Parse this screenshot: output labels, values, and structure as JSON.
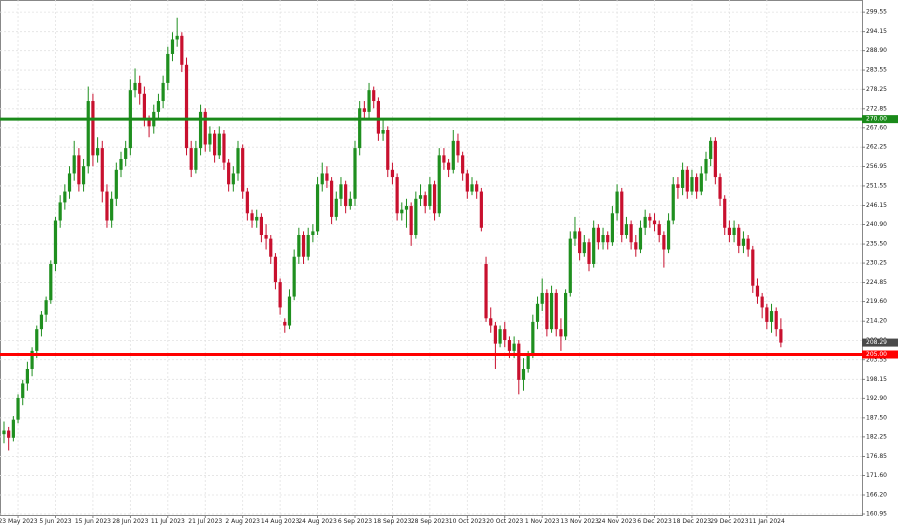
{
  "chart_data": {
    "type": "candlestick",
    "up_color": "#1f8f1f",
    "down_color": "#c8102e",
    "grid": true,
    "ylim": [
      160.4,
      302.9
    ],
    "yticks": [
      299.55,
      294.15,
      {
        "value": 288.9,
        "label": "288.90"
      },
      283.55,
      278.25,
      272.85,
      {
        "value": 267.6,
        "label": "267.60"
      },
      262.25,
      256.95,
      251.55,
      246.15,
      {
        "value": 240.9,
        "label": "240.90"
      },
      {
        "value": 235.5,
        "label": "235.50"
      },
      230.25,
      224.85,
      {
        "value": 219.6,
        "label": "219.60"
      },
      {
        "value": 214.2,
        "label": "214.20"
      },
      {
        "value": 208.9,
        "label": "208.90"
      },
      203.55,
      198.15,
      {
        "value": 192.9,
        "label": "192.90"
      },
      {
        "value": 187.5,
        "label": "187.50"
      },
      182.25,
      176.85,
      {
        "value": 171.6,
        "label": "171.60"
      },
      {
        "value": 166.2,
        "label": "166.20"
      },
      160.95
    ],
    "levels": [
      {
        "value": 270,
        "label": "270.00",
        "color": "#1a8a1a"
      },
      {
        "value": 205,
        "label": "205.00",
        "color": "#ff0000"
      }
    ],
    "last_price": {
      "value": 208.29,
      "label": "208.29"
    },
    "categories": [
      null,
      null,
      null,
      "23 May 2023",
      null,
      null,
      null,
      null,
      null,
      null,
      null,
      "5 Jun 2023",
      null,
      null,
      null,
      null,
      null,
      null,
      null,
      "15 Jun 2023",
      null,
      null,
      null,
      null,
      null,
      null,
      null,
      "28 Jun 2023",
      null,
      null,
      null,
      null,
      null,
      null,
      null,
      "11 Jul 2023",
      null,
      null,
      null,
      null,
      null,
      null,
      null,
      "21 Jul 2023",
      null,
      null,
      null,
      null,
      null,
      null,
      null,
      "2 Aug 2023",
      null,
      null,
      null,
      null,
      null,
      null,
      null,
      "14 Aug 2023",
      null,
      null,
      null,
      null,
      null,
      null,
      null,
      "24 Aug 2023",
      null,
      null,
      null,
      null,
      null,
      null,
      null,
      "6 Sep 2023",
      null,
      null,
      null,
      null,
      null,
      null,
      null,
      "18 Sep 2023",
      null,
      null,
      null,
      null,
      null,
      null,
      null,
      "28 Sep 2023",
      null,
      null,
      null,
      null,
      null,
      null,
      null,
      "10 Oct 2023",
      null,
      null,
      null,
      null,
      null,
      null,
      null,
      "20 Oct 2023",
      null,
      null,
      null,
      null,
      null,
      null,
      null,
      "1 Nov 2023",
      null,
      null,
      null,
      null,
      null,
      null,
      null,
      "13 Nov 2023",
      null,
      null,
      null,
      null,
      null,
      null,
      null,
      "24 Nov 2023",
      null,
      null,
      null,
      null,
      null,
      null,
      null,
      "6 Dec 2023",
      null,
      null,
      null,
      null,
      null,
      null,
      null,
      "18 Dec 2023",
      null,
      null,
      null,
      null,
      null,
      null,
      null,
      "29 Dec 2023",
      null,
      null,
      null,
      null,
      null,
      null,
      null,
      "11 Jan 2024",
      null,
      null,
      null
    ],
    "candles": [
      [
        183,
        186.5,
        180.5,
        184
      ],
      [
        184,
        185,
        178.5,
        182
      ],
      [
        182,
        188,
        181,
        187
      ],
      [
        187,
        194,
        186,
        193
      ],
      [
        193,
        198,
        191,
        197
      ],
      [
        197,
        203,
        195,
        201
      ],
      [
        201,
        207,
        199,
        206
      ],
      [
        206,
        213,
        204,
        212
      ],
      [
        212,
        217,
        210,
        216
      ],
      [
        216,
        221,
        214,
        220
      ],
      [
        220,
        231,
        219,
        230
      ],
      [
        230,
        243,
        228,
        242
      ],
      [
        242,
        249,
        240,
        247
      ],
      [
        247,
        252,
        245,
        250
      ],
      [
        250,
        257,
        248,
        255
      ],
      [
        255,
        264,
        253,
        260
      ],
      [
        260,
        262,
        250,
        252
      ],
      [
        252,
        259,
        250,
        257
      ],
      [
        257,
        279,
        255,
        275
      ],
      [
        275,
        277,
        257,
        260
      ],
      [
        260,
        265,
        258,
        262
      ],
      [
        262,
        264,
        247,
        250
      ],
      [
        250,
        252,
        240,
        242
      ],
      [
        242,
        250,
        240,
        248
      ],
      [
        248,
        258,
        246,
        256
      ],
      [
        256,
        261,
        254,
        259
      ],
      [
        259,
        264,
        257,
        262
      ],
      [
        262,
        281,
        260,
        278
      ],
      [
        278,
        284,
        276,
        280
      ],
      [
        280,
        282,
        274,
        277
      ],
      [
        277,
        279,
        268,
        270
      ],
      [
        270,
        271,
        265,
        268
      ],
      [
        268,
        274,
        266,
        272
      ],
      [
        272,
        277,
        270,
        275
      ],
      [
        275,
        282,
        273,
        280
      ],
      [
        280,
        290,
        278,
        288
      ],
      [
        288,
        294,
        286,
        292
      ],
      [
        292,
        298,
        290,
        293
      ],
      [
        293,
        294,
        283,
        285
      ],
      [
        285,
        287,
        260,
        262
      ],
      [
        262,
        264,
        254,
        256
      ],
      [
        256,
        264,
        255,
        262
      ],
      [
        262,
        274,
        260,
        272
      ],
      [
        272,
        273,
        261,
        263
      ],
      [
        263,
        268,
        261,
        266
      ],
      [
        266,
        267,
        258,
        260
      ],
      [
        260,
        268,
        259,
        266
      ],
      [
        266,
        267,
        256,
        258
      ],
      [
        258,
        259,
        250,
        252
      ],
      [
        252,
        257,
        250,
        255
      ],
      [
        255,
        264,
        253,
        262
      ],
      [
        262,
        263,
        248,
        250
      ],
      [
        250,
        251,
        242,
        244
      ],
      [
        244,
        245,
        240,
        242
      ],
      [
        242,
        245,
        240,
        243
      ],
      [
        243,
        244,
        236,
        238
      ],
      [
        238,
        241,
        234,
        237
      ],
      [
        237,
        238,
        230,
        232
      ],
      [
        232,
        233,
        223,
        225
      ],
      [
        225,
        226,
        216,
        218
      ],
      [
        214,
        215,
        211,
        213
      ],
      [
        213,
        223,
        212,
        221
      ],
      [
        221,
        234,
        220,
        232
      ],
      [
        232,
        240,
        230,
        238
      ],
      [
        238,
        239,
        230,
        232
      ],
      [
        232,
        240,
        231,
        238
      ],
      [
        238,
        241,
        236,
        239
      ],
      [
        239,
        254,
        238,
        252
      ],
      [
        252,
        258,
        250,
        255
      ],
      [
        255,
        257,
        251,
        253
      ],
      [
        253,
        254,
        241,
        243
      ],
      [
        243,
        250,
        242,
        248
      ],
      [
        248,
        254,
        246,
        252
      ],
      [
        252,
        253,
        244,
        246
      ],
      [
        246,
        250,
        245,
        248
      ],
      [
        248,
        264,
        246,
        262
      ],
      [
        262,
        275,
        260,
        273
      ],
      [
        273,
        275,
        270,
        272
      ],
      [
        272,
        280,
        270,
        278
      ],
      [
        278,
        279,
        273,
        275
      ],
      [
        275,
        276,
        264,
        266
      ],
      [
        266,
        270,
        264,
        267
      ],
      [
        267,
        268,
        254,
        256
      ],
      [
        256,
        258,
        252,
        254
      ],
      [
        254,
        255,
        242,
        244
      ],
      [
        244,
        247,
        242,
        245
      ],
      [
        245,
        248,
        240,
        246
      ],
      [
        246,
        247,
        235,
        238
      ],
      [
        238,
        250,
        237,
        248
      ],
      [
        248,
        252,
        246,
        249
      ],
      [
        249,
        250,
        244,
        246
      ],
      [
        246,
        254,
        245,
        252
      ],
      [
        252,
        253,
        242,
        244
      ],
      [
        244,
        262,
        243,
        260
      ],
      [
        260,
        262,
        256,
        258
      ],
      [
        258,
        259,
        254,
        256
      ],
      [
        256,
        267,
        255,
        264
      ],
      [
        264,
        266,
        258,
        260
      ],
      [
        260,
        261,
        253,
        255
      ],
      [
        255,
        256,
        248,
        250
      ],
      [
        250,
        254,
        249,
        252
      ],
      [
        252,
        253,
        248,
        250
      ],
      [
        250,
        251,
        239,
        240
      ],
      [
        230,
        232,
        214,
        215
      ],
      [
        215,
        218,
        211,
        213
      ],
      [
        213,
        214,
        201,
        208
      ],
      [
        208,
        213,
        207,
        212
      ],
      [
        212,
        214,
        207,
        209
      ],
      [
        209,
        210,
        204,
        206
      ],
      [
        206,
        210,
        204,
        208
      ],
      [
        208,
        209,
        194,
        198
      ],
      [
        198,
        204,
        195,
        201
      ],
      [
        201,
        206,
        200,
        205
      ],
      [
        205,
        216,
        204,
        214
      ],
      [
        214,
        221,
        212,
        219
      ],
      [
        219,
        226,
        217,
        222
      ],
      [
        222,
        223,
        210,
        212
      ],
      [
        212,
        224,
        211,
        222
      ],
      [
        222,
        223,
        210,
        212
      ],
      [
        212,
        215,
        206,
        210
      ],
      [
        210,
        223,
        209,
        222
      ],
      [
        222,
        239,
        221,
        237
      ],
      [
        237,
        243,
        235,
        239
      ],
      [
        239,
        240,
        231,
        233
      ],
      [
        233,
        238,
        232,
        236
      ],
      [
        236,
        237,
        228,
        230
      ],
      [
        230,
        242,
        229,
        240
      ],
      [
        240,
        241,
        234,
        236
      ],
      [
        236,
        240,
        234,
        238
      ],
      [
        238,
        239,
        234,
        236
      ],
      [
        236,
        246,
        235,
        244
      ],
      [
        244,
        252,
        242,
        250
      ],
      [
        250,
        251,
        236,
        238
      ],
      [
        238,
        243,
        237,
        241
      ],
      [
        241,
        242,
        234,
        236
      ],
      [
        236,
        238,
        232,
        234
      ],
      [
        234,
        242,
        233,
        240
      ],
      [
        240,
        245,
        238,
        243
      ],
      [
        243,
        244,
        240,
        242
      ],
      [
        242,
        244,
        239,
        241
      ],
      [
        241,
        242,
        236,
        238
      ],
      [
        238,
        239,
        229,
        234
      ],
      [
        234,
        244,
        233,
        242
      ],
      [
        242,
        254,
        241,
        252
      ],
      [
        252,
        254,
        248,
        251
      ],
      [
        251,
        258,
        249,
        256
      ],
      [
        256,
        257,
        248,
        250
      ],
      [
        250,
        256,
        249,
        254
      ],
      [
        254,
        255,
        248,
        250
      ],
      [
        250,
        257,
        249,
        255
      ],
      [
        255,
        261,
        253,
        259
      ],
      [
        259,
        265,
        257,
        264
      ],
      [
        264,
        265,
        252,
        254
      ],
      [
        254,
        255,
        246,
        248
      ],
      [
        248,
        249,
        238,
        240
      ],
      [
        240,
        242,
        236,
        238
      ],
      [
        238,
        242,
        236,
        240
      ],
      [
        240,
        241,
        233,
        235
      ],
      [
        235,
        239,
        233,
        237
      ],
      [
        237,
        238,
        232,
        234
      ],
      [
        234,
        235,
        222,
        224
      ],
      [
        224,
        226,
        219,
        221
      ],
      [
        221,
        222,
        215,
        218
      ],
      [
        218,
        219,
        212,
        214
      ],
      [
        214,
        219,
        211,
        217
      ],
      [
        217,
        218,
        210,
        212
      ],
      [
        212,
        215,
        207,
        208.29
      ]
    ]
  }
}
